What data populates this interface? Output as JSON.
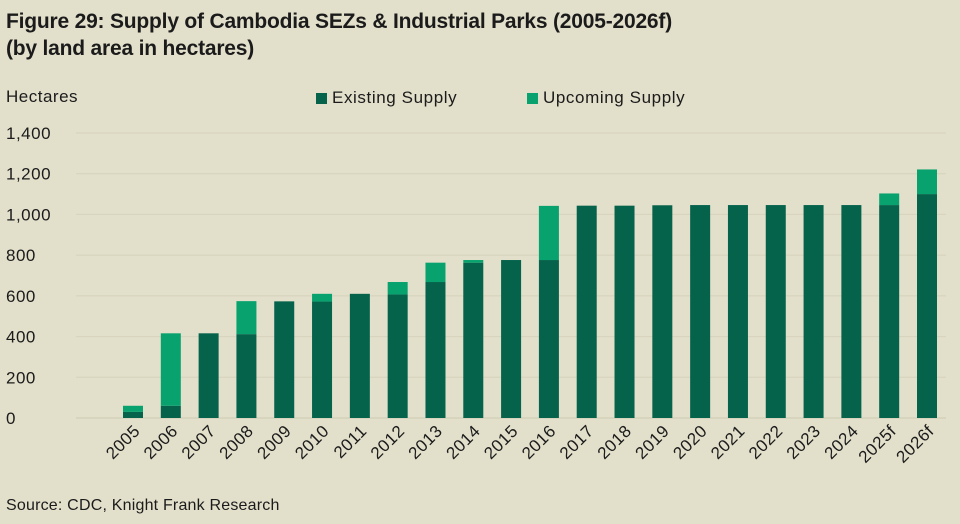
{
  "chart_data": {
    "type": "bar",
    "stacked": true,
    "title": "Figure 29: Supply of Cambodia SEZs & Industrial Parks (2005-2026f)",
    "subtitle": "(by land area in hectares)",
    "ylabel": "Hectares",
    "xlabel": "",
    "ylim": [
      0,
      1400
    ],
    "yticks": [
      0,
      200,
      400,
      600,
      800,
      1000,
      1200,
      1400
    ],
    "ytick_labels": [
      "0",
      "200",
      "400",
      "600",
      "800",
      "1,000",
      "1,200",
      "1,400"
    ],
    "grid": true,
    "legend_position": "top",
    "categories": [
      "2005",
      "2006",
      "2007",
      "2008",
      "2009",
      "2010",
      "2011",
      "2012",
      "2013",
      "2014",
      "2015",
      "2016",
      "2017",
      "2018",
      "2019",
      "2020",
      "2021",
      "2022",
      "2023",
      "2024",
      "2025f",
      "2026f"
    ],
    "series": [
      {
        "name": "Existing Supply",
        "color": "#05634c",
        "values": [
          30,
          60,
          416,
          412,
          573,
          572,
          610,
          607,
          668,
          763,
          776,
          776,
          1043,
          1043,
          1045,
          1046,
          1046,
          1046,
          1046,
          1046,
          1046,
          1100
        ]
      },
      {
        "name": "Upcoming Supply",
        "color": "#08a26e",
        "values": [
          30,
          356,
          0,
          162,
          0,
          38,
          0,
          61,
          95,
          13,
          0,
          266,
          0,
          0,
          0,
          0,
          0,
          0,
          0,
          0,
          57,
          121
        ]
      }
    ]
  },
  "source": "Source: CDC, Knight Frank Research"
}
